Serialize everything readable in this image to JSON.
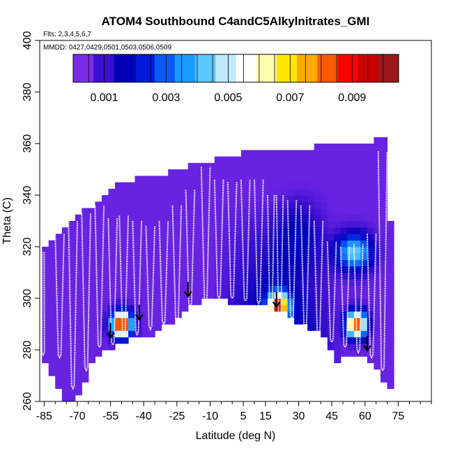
{
  "chart_data": {
    "type": "heatmap",
    "title": "ATOM4 Southbound C4andC5Alkylnitrates_GMI",
    "annotations": {
      "flights": "Flts: 2,3,4,5,6,7",
      "dates": "MMDD: 0427,0429,0501,0503,0506,0509"
    },
    "xlabel": "Latitude (deg N)",
    "ylabel": "Theta (C)",
    "xlim": [
      -87,
      90
    ],
    "ylim": [
      260,
      400
    ],
    "x_ticks": [
      -85,
      -70,
      -55,
      -40,
      -25,
      -10,
      5,
      15,
      30,
      45,
      60,
      75
    ],
    "y_ticks": [
      260,
      280,
      300,
      320,
      340,
      360,
      380,
      400
    ],
    "colorbar": {
      "range": [
        0,
        0.0105
      ],
      "ticks": [
        "0.001",
        "0.003",
        "0.005",
        "0.007",
        "0.009"
      ],
      "tick_values": [
        0.001,
        0.003,
        0.005,
        0.007,
        0.009
      ],
      "colors": [
        "#7B2BE8",
        "#3A0FD0",
        "#0000B8",
        "#0018D8",
        "#0A5AF5",
        "#1A9BFF",
        "#5CC6FF",
        "#BEE9FF",
        "#FFFFFF",
        "#FFFBB0",
        "#FFE600",
        "#FFAA00",
        "#FF5A00",
        "#FF0000",
        "#C80000",
        "#9B1818"
      ]
    },
    "upper_boundary": [
      [
        -86,
        318
      ],
      [
        -82,
        321
      ],
      [
        -78,
        325
      ],
      [
        -74,
        328
      ],
      [
        -70,
        332
      ],
      [
        -66,
        333
      ],
      [
        -62,
        336
      ],
      [
        -57,
        340
      ],
      [
        -52,
        343
      ],
      [
        -47,
        344
      ],
      [
        -43,
        345
      ],
      [
        -38,
        346
      ],
      [
        -30,
        347
      ],
      [
        -25,
        349
      ],
      [
        -20,
        350
      ],
      [
        -15,
        351
      ],
      [
        -10,
        352
      ],
      [
        -5,
        353
      ],
      [
        0,
        354
      ],
      [
        5,
        355
      ],
      [
        10,
        356
      ],
      [
        15,
        356
      ],
      [
        20,
        357
      ],
      [
        25,
        357
      ],
      [
        30,
        357
      ],
      [
        35,
        357
      ],
      [
        40,
        358
      ],
      [
        45,
        358
      ],
      [
        50,
        358
      ],
      [
        55,
        358
      ],
      [
        60,
        358
      ],
      [
        64,
        359
      ],
      [
        67,
        362
      ],
      [
        70,
        360
      ],
      [
        71,
        330
      ]
    ],
    "lower_boundary": [
      [
        71,
        265
      ],
      [
        66,
        272
      ],
      [
        62,
        277
      ],
      [
        57,
        278
      ],
      [
        52,
        278
      ],
      [
        47,
        277
      ],
      [
        43,
        285
      ],
      [
        35,
        290
      ],
      [
        25,
        294
      ],
      [
        15,
        298
      ],
      [
        5,
        299
      ],
      [
        -10,
        301
      ],
      [
        -18,
        298
      ],
      [
        -28,
        292
      ],
      [
        -37,
        287
      ],
      [
        -43,
        286
      ],
      [
        -52,
        283
      ],
      [
        -57,
        281
      ],
      [
        -63,
        277
      ],
      [
        -68,
        266
      ],
      [
        -71,
        262
      ],
      [
        -75,
        261
      ],
      [
        -79,
        267
      ],
      [
        -84,
        277
      ],
      [
        -86,
        278
      ]
    ],
    "features": [
      {
        "name": "hotspot-south",
        "lat": -50,
        "theta": 290,
        "peak": 0.0098
      },
      {
        "name": "hotspot-tropics",
        "lat": 21,
        "theta": 297,
        "peak": 0.008
      },
      {
        "name": "hotspot-north",
        "lat": 56,
        "theta": 290,
        "peak": 0.0088
      },
      {
        "name": "enhancement-north-upper",
        "lat": 55,
        "theta": 318,
        "peak": 0.0042
      }
    ],
    "flight_profiles": [
      {
        "lat_range": [
          -86,
          -85
        ],
        "theta_range": [
          278,
          318
        ]
      },
      {
        "lat_range": [
          -80,
          -76
        ],
        "theta_range": [
          277,
          325
        ]
      },
      {
        "lat_range": [
          -74,
          -70
        ],
        "theta_range": [
          265,
          330
        ]
      },
      {
        "lat_range": [
          -68,
          -64
        ],
        "theta_range": [
          272,
          333
        ]
      },
      {
        "lat_range": [
          -62,
          -58
        ],
        "theta_range": [
          281,
          336
        ]
      },
      {
        "lat_range": [
          -56,
          -52
        ],
        "theta_range": [
          282,
          331
        ]
      },
      {
        "lat_range": [
          -51,
          -47
        ],
        "theta_range": [
          285,
          332
        ]
      },
      {
        "lat_range": [
          -45,
          -41
        ],
        "theta_range": [
          286,
          330
        ]
      },
      {
        "lat_range": [
          -39,
          -35
        ],
        "theta_range": [
          288,
          328
        ]
      },
      {
        "lat_range": [
          -33,
          -29
        ],
        "theta_range": [
          290,
          330
        ]
      },
      {
        "lat_range": [
          -27,
          -23
        ],
        "theta_range": [
          291,
          336
        ]
      },
      {
        "lat_range": [
          -21,
          -17
        ],
        "theta_range": [
          297,
          342
        ]
      },
      {
        "lat_range": [
          -14,
          -10
        ],
        "theta_range": [
          299,
          351
        ]
      },
      {
        "lat_range": [
          -8,
          -4
        ],
        "theta_range": [
          300,
          346
        ]
      },
      {
        "lat_range": [
          -2,
          2
        ],
        "theta_range": [
          300,
          345
        ]
      },
      {
        "lat_range": [
          4,
          8
        ],
        "theta_range": [
          299,
          346
        ]
      },
      {
        "lat_range": [
          10,
          14
        ],
        "theta_range": [
          298,
          346
        ]
      },
      {
        "lat_range": [
          16,
          19
        ],
        "theta_range": [
          296,
          340
        ]
      },
      {
        "lat_range": [
          20,
          23
        ],
        "theta_range": [
          294,
          340
        ]
      },
      {
        "lat_range": [
          25,
          29
        ],
        "theta_range": [
          292,
          338
        ]
      },
      {
        "lat_range": [
          31,
          35
        ],
        "theta_range": [
          289,
          336
        ]
      },
      {
        "lat_range": [
          37,
          41
        ],
        "theta_range": [
          286,
          330
        ]
      },
      {
        "lat_range": [
          43,
          47
        ],
        "theta_range": [
          283,
          322
        ]
      },
      {
        "lat_range": [
          49,
          53
        ],
        "theta_range": [
          281,
          320
        ]
      },
      {
        "lat_range": [
          55,
          59
        ],
        "theta_range": [
          279,
          321
        ]
      },
      {
        "lat_range": [
          61,
          65
        ],
        "theta_range": [
          277,
          325
        ]
      },
      {
        "lat_range": [
          66,
          70
        ],
        "theta_range": [
          272,
          357
        ]
      }
    ],
    "markers": [
      {
        "lat": -55,
        "theta": 285
      },
      {
        "lat": -42,
        "theta": 292
      },
      {
        "lat": -20,
        "theta": 301
      },
      {
        "lat": 20,
        "theta": 297
      },
      {
        "lat": 61,
        "theta": 280
      }
    ]
  }
}
